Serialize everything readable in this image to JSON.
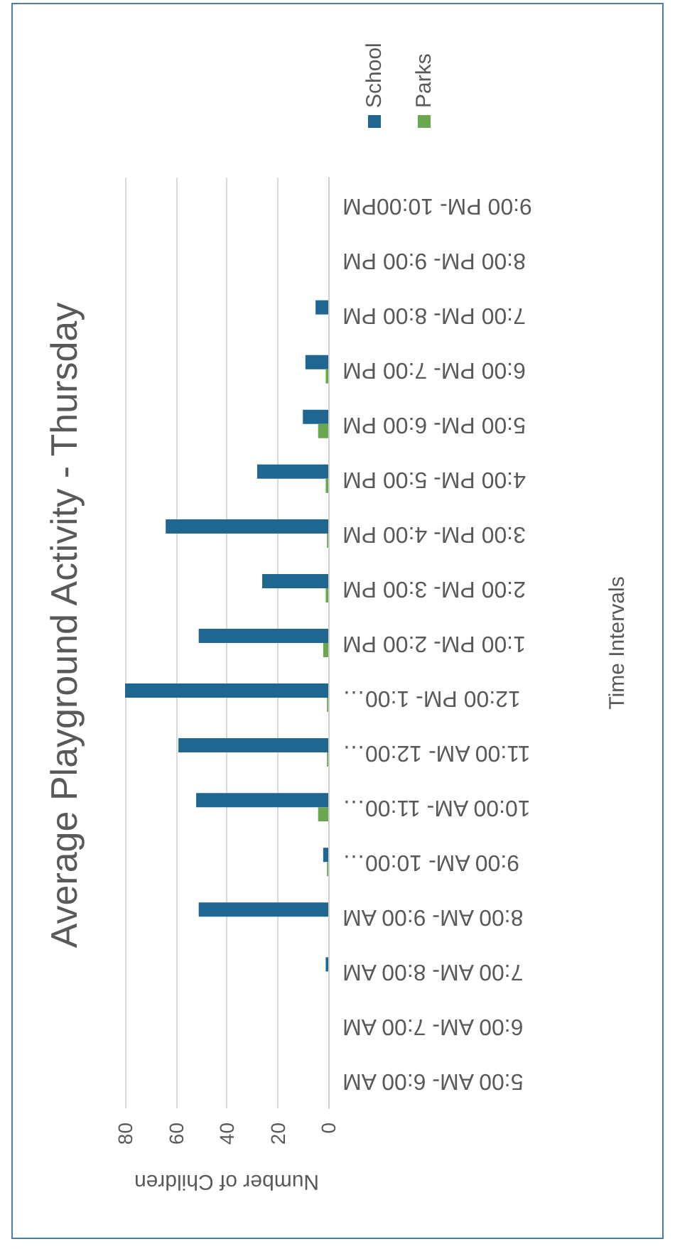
{
  "chart_data": {
    "type": "bar",
    "orientation": "horizontal",
    "title": "Average Playground Activity - Thursday",
    "xlabel": "Number of Children",
    "ylabel": "Time Intervals",
    "categories": [
      "9:00 PM- 10:00PM",
      "8:00 PM- 9:00 PM",
      "7:00 PM- 8:00 PM",
      "6:00 PM- 7:00 PM",
      "5:00 PM- 6:00 PM",
      "4:00 PM- 5:00 PM",
      "3:00 PM- 4:00 PM",
      "2:00 PM- 3:00 PM",
      "1:00 PM- 2:00 PM",
      "12:00 PM- 1:00…",
      "11:00 AM- 12:00…",
      "10:00 AM- 11:00…",
      "9:00 AM- 10:00…",
      "8:00 AM- 9:00 AM",
      "7:00 AM- 8:00 AM",
      "6:00 AM- 7:00 AM",
      "5:00 AM- 6:00 AM"
    ],
    "series": [
      {
        "name": "School",
        "color": "#1f6690",
        "values": [
          0,
          0,
          5,
          9,
          10,
          28,
          64,
          26,
          51,
          80,
          59,
          52,
          2,
          51,
          1,
          0,
          0
        ]
      },
      {
        "name": "Parks",
        "color": "#6aa84f",
        "values": [
          0,
          0,
          0,
          1,
          4,
          1,
          0.5,
          1,
          2,
          0.5,
          0.5,
          4,
          0.5,
          0,
          0,
          0,
          0
        ]
      }
    ],
    "xlim": [
      80,
      0
    ],
    "xticks": [
      0,
      20,
      40,
      60,
      80
    ],
    "grid": "x",
    "legend": "top right"
  }
}
